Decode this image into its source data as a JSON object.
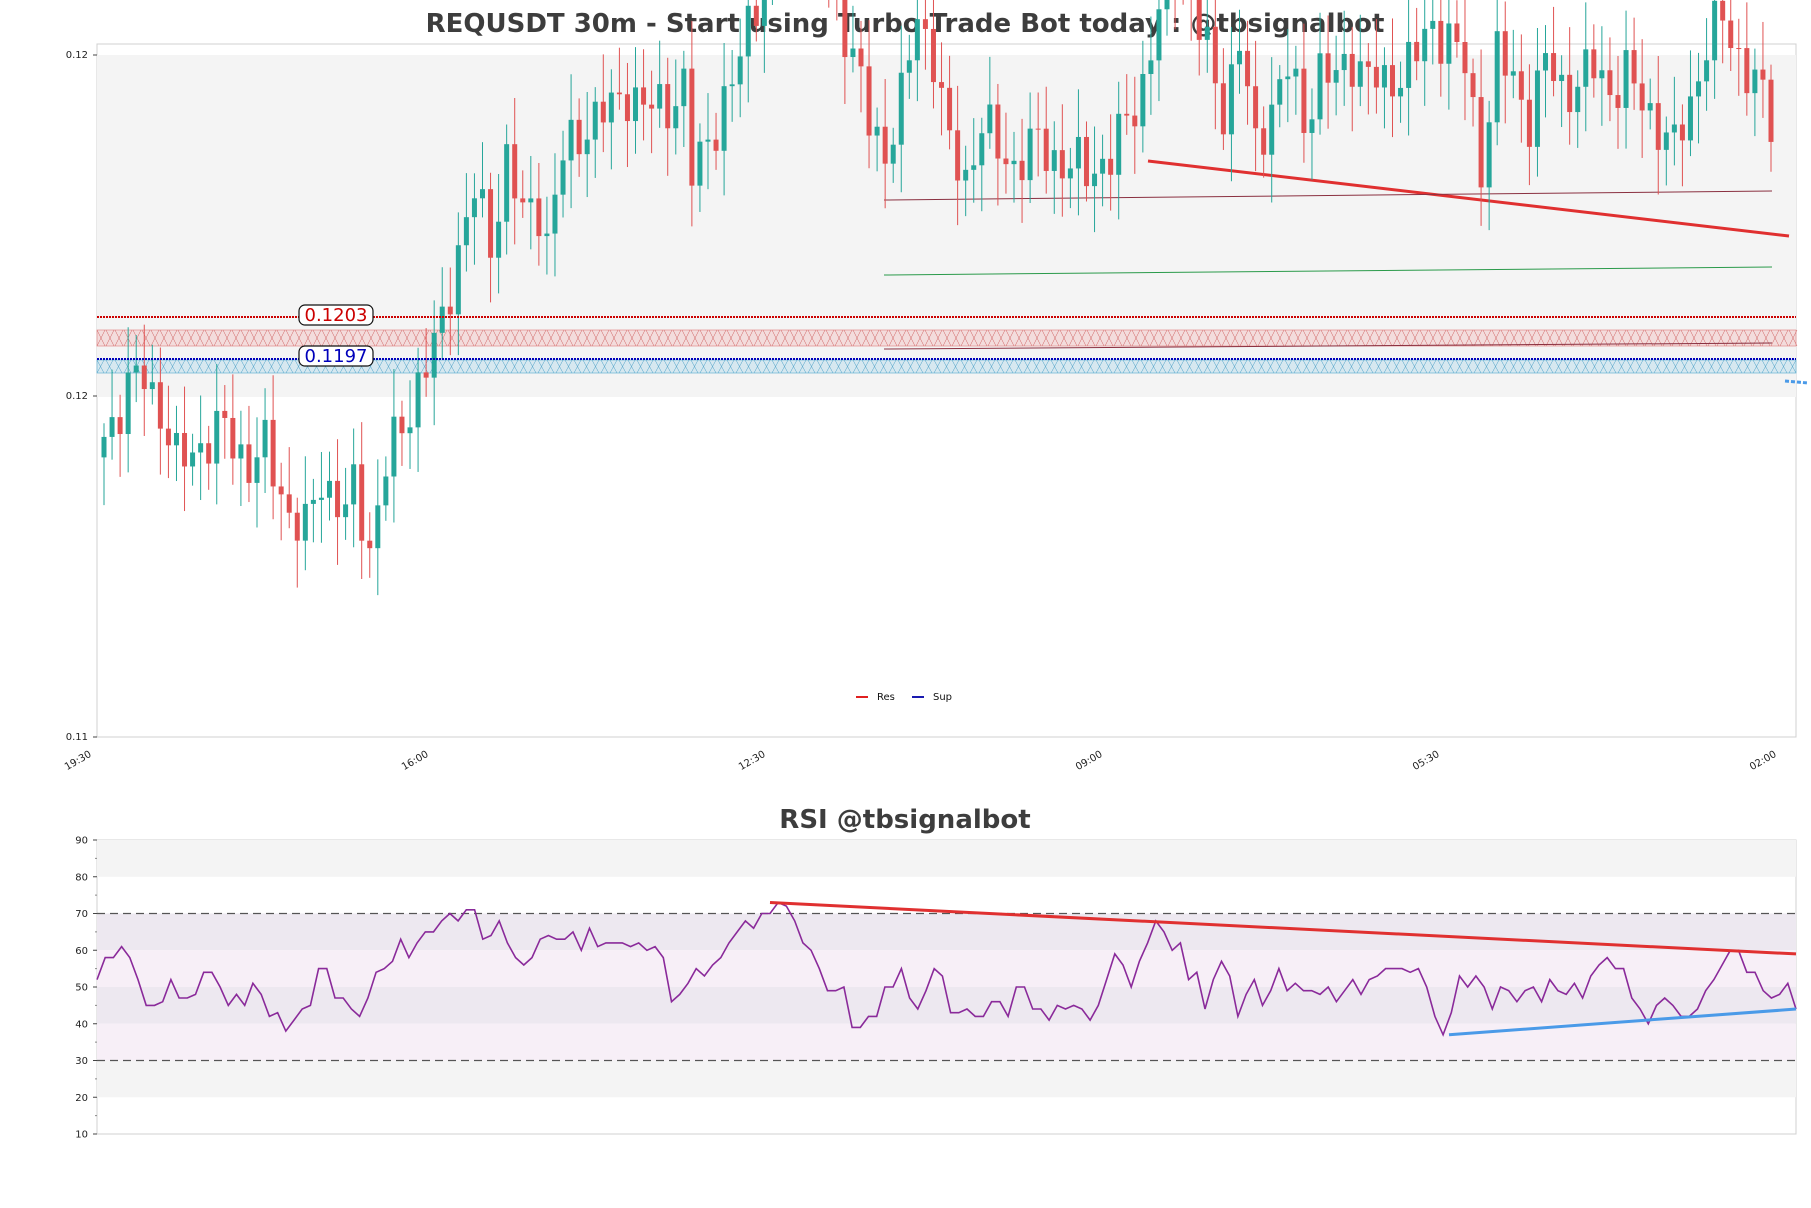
{
  "chart_data": [
    {
      "type": "candlestick",
      "title": "REQUSDT 30m - Start using Turbo Trade Bot today : @tbsignalbot",
      "ylim": [
        0.11,
        0.12
      ],
      "y_ticks": [
        "0.11",
        "0.12",
        "0.12"
      ],
      "x_ticks": [
        "19:30",
        "16:00",
        "12:30",
        "09:00",
        "05:30",
        "02:00"
      ],
      "legend": [
        {
          "name": "Res",
          "color": "#e02020"
        },
        {
          "name": "Sup",
          "color": "#1a1ab0"
        }
      ],
      "levels": [
        {
          "name": "Res",
          "label": "0.1203",
          "value": 0.12035,
          "color": "#cc0000"
        },
        {
          "name": "Sup",
          "label": "0.1197",
          "value": 0.11975,
          "color": "#0000bb"
        }
      ],
      "colors": {
        "up": "#26a69a",
        "down": "#e05252",
        "background": "#f4f4f4"
      },
      "grid": false
    },
    {
      "type": "line",
      "title": "RSI @tbsignalbot",
      "ylim": [
        10,
        90
      ],
      "y_ticks": [
        "90",
        "80",
        "70",
        "60",
        "50",
        "40",
        "30",
        "20",
        "10"
      ],
      "overbought": 70,
      "oversold": 30,
      "series": [
        {
          "color": "#8a2a9a",
          "values": [
            52,
            58,
            58,
            61,
            58,
            52,
            45,
            45,
            46,
            52,
            47,
            47,
            48,
            54,
            54,
            50,
            45,
            48,
            45,
            51,
            48,
            42,
            43,
            38,
            41,
            44,
            45,
            55,
            55,
            47,
            47,
            44,
            42,
            47,
            54,
            55,
            57,
            63,
            58,
            62,
            65,
            65,
            68,
            70,
            68,
            71,
            71,
            63,
            64,
            68,
            62,
            58,
            56,
            58,
            63,
            64,
            63,
            63,
            65,
            60,
            66,
            61,
            62,
            62,
            62,
            61,
            62,
            60,
            61,
            58,
            46,
            48,
            51,
            55,
            53,
            56,
            58,
            62,
            65,
            68,
            66,
            70,
            70,
            73,
            72,
            68,
            62,
            60,
            55,
            49,
            49,
            50,
            39,
            39,
            42,
            42,
            50,
            50,
            55,
            47,
            44,
            49,
            55,
            53,
            43,
            43,
            44,
            42,
            42,
            46,
            46,
            42,
            50,
            50,
            44,
            44,
            41,
            45,
            44,
            45,
            44,
            41,
            45,
            52,
            59,
            56,
            50,
            57,
            62,
            68,
            65,
            60,
            62,
            52,
            54,
            44,
            52,
            57,
            53,
            42,
            48,
            52,
            45,
            49,
            55,
            49,
            51,
            49,
            49,
            48,
            50,
            46,
            49,
            52,
            48,
            52,
            53,
            55,
            55,
            55,
            54,
            55,
            50,
            42,
            37,
            43,
            53,
            50,
            53,
            50,
            44,
            50,
            49,
            46,
            49,
            50,
            46,
            52,
            49,
            48,
            51,
            47,
            53,
            56,
            58,
            55,
            55,
            47,
            44,
            40,
            45,
            47,
            45,
            42,
            42,
            44,
            49,
            52,
            56,
            60,
            60,
            54,
            54,
            49,
            47,
            48,
            51,
            44
          ]
        }
      ],
      "trendlines": [
        {
          "name": "resistance",
          "color": "#e03030",
          "from": 73,
          "to": 59
        },
        {
          "name": "support",
          "color": "#4a9ae8",
          "from": 37,
          "to": 44
        }
      ],
      "grid": false
    }
  ]
}
